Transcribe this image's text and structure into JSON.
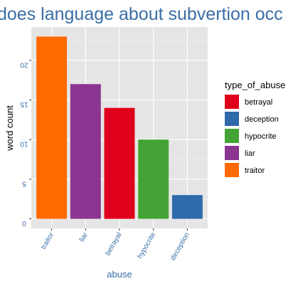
{
  "chart_data": {
    "type": "bar",
    "title": "does language about subvertion occ",
    "xlabel": "abuse",
    "ylabel": "word count",
    "categories": [
      "traitor",
      "liar",
      "betrayal",
      "hypocrite",
      "deception"
    ],
    "values": [
      23,
      17,
      14,
      10,
      3
    ],
    "bar_colors": [
      "#ff6a00",
      "#8a3590",
      "#e0001b",
      "#43a435",
      "#2f6aab"
    ],
    "yticks": [
      0,
      5,
      10,
      15,
      20
    ],
    "ytick_labels": [
      "0",
      "5",
      "10",
      "15",
      "20"
    ],
    "ylim": [
      -1.2,
      24.2
    ],
    "grid": true,
    "panel_background": "#e5e5e5",
    "title_color": "#3a6ea5",
    "tick_label_color": "#3a6ea5",
    "legend": {
      "title": "type_of_abuse",
      "placement": "right",
      "entries": [
        {
          "label": "betrayal",
          "color": "#e0001b"
        },
        {
          "label": "deception",
          "color": "#2f6aab"
        },
        {
          "label": "hypocrite",
          "color": "#43a435"
        },
        {
          "label": "liar",
          "color": "#8a3590"
        },
        {
          "label": "traitor",
          "color": "#ff6a00"
        }
      ]
    }
  }
}
